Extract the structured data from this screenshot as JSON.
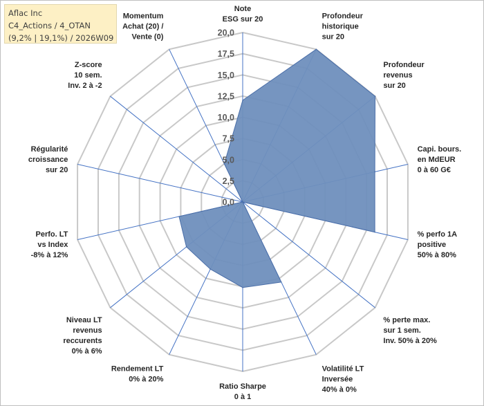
{
  "header": {
    "line1": "Aflac Inc",
    "line2": "C4_Actions / 4_OTAN",
    "line3": "(9,2% | 19,1%) / 2026W09"
  },
  "colors": {
    "fill": "#6f8fbd",
    "stroke": "#4a6ea8",
    "grid": "#c8c8c8",
    "axis": "#4472c4"
  },
  "chart_data": {
    "type": "radar",
    "title": "Aflac Inc",
    "rmax": 20,
    "tick_values": [
      0,
      2.5,
      5,
      7.5,
      10,
      12.5,
      15,
      17.5,
      20
    ],
    "tick_labels": [
      "0,0",
      "2,5",
      "5,0",
      "7,5",
      "10,0",
      "12,5",
      "15,0",
      "17,5",
      "20,0"
    ],
    "axes": [
      {
        "label": [
          "Note",
          "ESG sur 20"
        ],
        "value": 12
      },
      {
        "label": [
          "Profondeur",
          "historique",
          "sur 20"
        ],
        "value": 20
      },
      {
        "label": [
          "Profondeur",
          "revenus",
          "sur 20"
        ],
        "value": 20
      },
      {
        "label": [
          "Capi. bours.",
          "en MdEUR",
          "0 à 60 G€"
        ],
        "value": 16
      },
      {
        "label": [
          "% perfo 1A",
          "positive",
          "50% à 80%"
        ],
        "value": 16
      },
      {
        "label": [
          "% perte max.",
          "sur 1 sem.",
          "Inv. 50% à 20%"
        ],
        "value": 0
      },
      {
        "label": [
          "Volatilité LT",
          "Inversée",
          "40% à 0%"
        ],
        "value": 10.5
      },
      {
        "label": [
          "Ratio Sharpe",
          "0 à 1"
        ],
        "value": 10.1
      },
      {
        "label": [
          "Rendement LT",
          "0% à 20%"
        ],
        "value": 8.8
      },
      {
        "label": [
          "Niveau LT",
          "revenus",
          "reccurents",
          "0% à 6%"
        ],
        "value": 8.5
      },
      {
        "label": [
          "Perfo. LT",
          "vs Index",
          "-8% à 12%"
        ],
        "value": 7.7
      },
      {
        "label": [
          "Régularité",
          "croissance",
          "sur 20"
        ],
        "value": 0
      },
      {
        "label": [
          "Z-score",
          "10 sem.",
          "Inv. 2 à -2"
        ],
        "value": 0
      },
      {
        "label": [
          "Momentum",
          "Achat (20) /",
          "Vente (0)"
        ],
        "value": 5
      }
    ]
  }
}
